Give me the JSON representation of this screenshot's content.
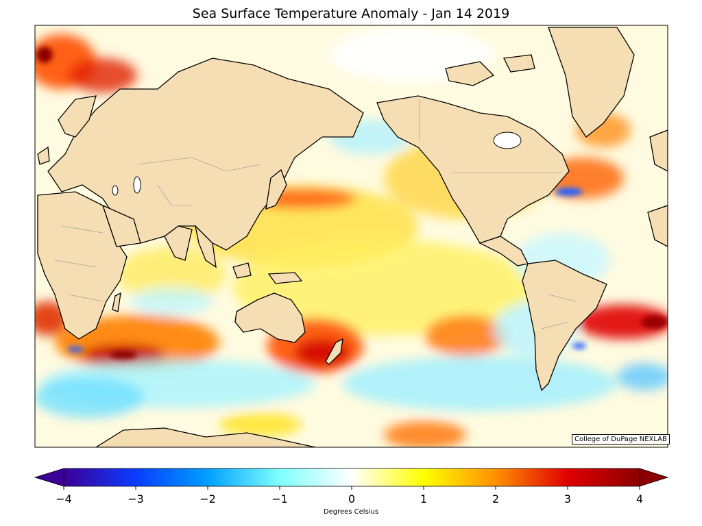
{
  "title": "Sea Surface Temperature Anomaly - Jan 14 2019",
  "credit": "College of DuPage NEXLAB",
  "colorbar": {
    "label": "Degrees Celsius",
    "ticks": [
      "−4",
      "−3",
      "−2",
      "−1",
      "0",
      "1",
      "2",
      "3",
      "4"
    ],
    "min": -4,
    "max": 4,
    "extend": "both",
    "colors": [
      "#3c0096",
      "#0a3cff",
      "#00a0ff",
      "#80ffff",
      "#ffffff",
      "#ffff00",
      "#ff9000",
      "#e00000",
      "#8c0000"
    ]
  },
  "map": {
    "ocean_neutral": "#ffffff",
    "land_color": "#f5deb3",
    "coast_color": "#000000",
    "border_color": "#888888"
  }
}
